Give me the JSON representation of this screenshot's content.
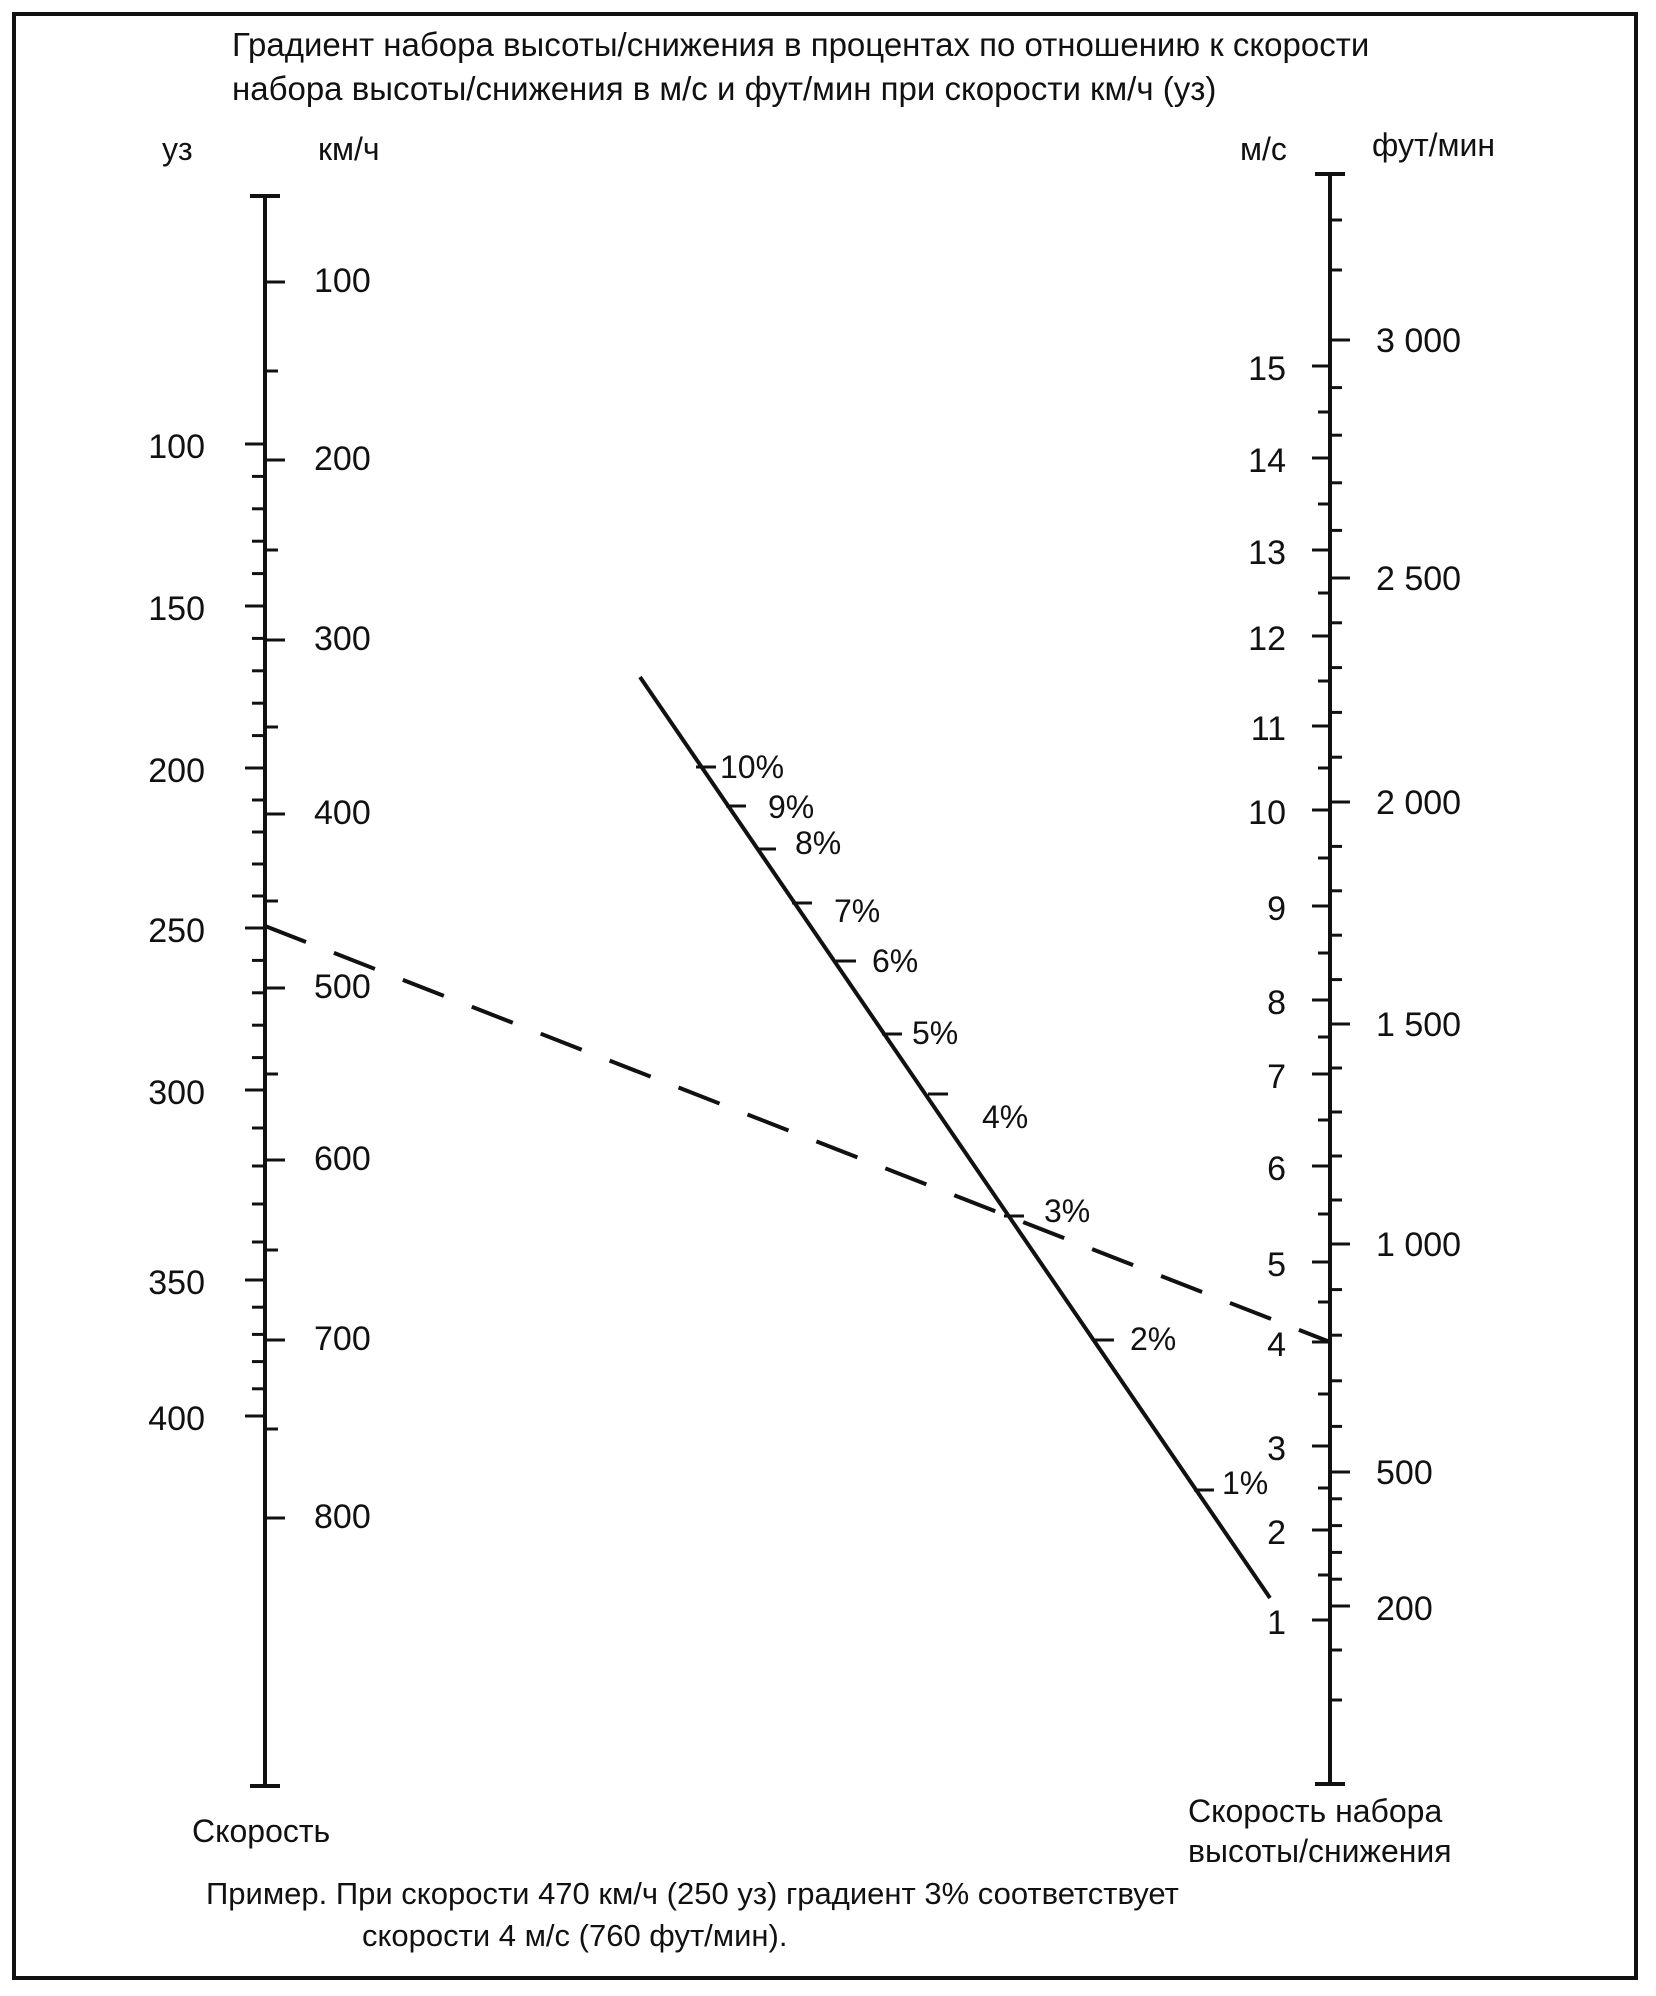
{
  "title_lines": [
    "Градиент набора высоты/снижения в процентах по отношению к скорости",
    "набора высоты/снижения в м/с и фут/мин при скорости км/ч (уз)"
  ],
  "axes": {
    "left_outer_unit": "уз",
    "left_inner_unit": "км/ч",
    "right_inner_unit": "м/с",
    "right_outer_unit": "фут/мин",
    "left_caption": "Скорость",
    "right_caption_lines": [
      "Скорость набора",
      "высоты/снижения"
    ]
  },
  "scales": {
    "knots": [
      "100",
      "150",
      "200",
      "250",
      "300",
      "350",
      "400"
    ],
    "kmh": [
      "100",
      "200",
      "300",
      "400",
      "500",
      "600",
      "700",
      "800"
    ],
    "ms": [
      "15",
      "14",
      "13",
      "12",
      "11",
      "10",
      "9",
      "8",
      "7",
      "6",
      "5",
      "4",
      "3",
      "2",
      "1"
    ],
    "ftmin": [
      "3 000",
      "2 500",
      "2 000",
      "1 500",
      "1 000",
      "500",
      "200"
    ]
  },
  "gradient_labels": [
    "10%",
    "9%",
    "8%",
    "7%",
    "6%",
    "5%",
    "4%",
    "3%",
    "2%",
    "1%"
  ],
  "example_lines": [
    "Пример. При скорости 470 км/ч (250 уз) градиент 3% соответствует",
    "скорости 4 м/с (760 фут/мин)."
  ],
  "example": {
    "speed_kmh": 470,
    "speed_kt": 250,
    "gradient_percent": 3,
    "rate_ms": 4,
    "rate_ftmin": 760
  }
}
